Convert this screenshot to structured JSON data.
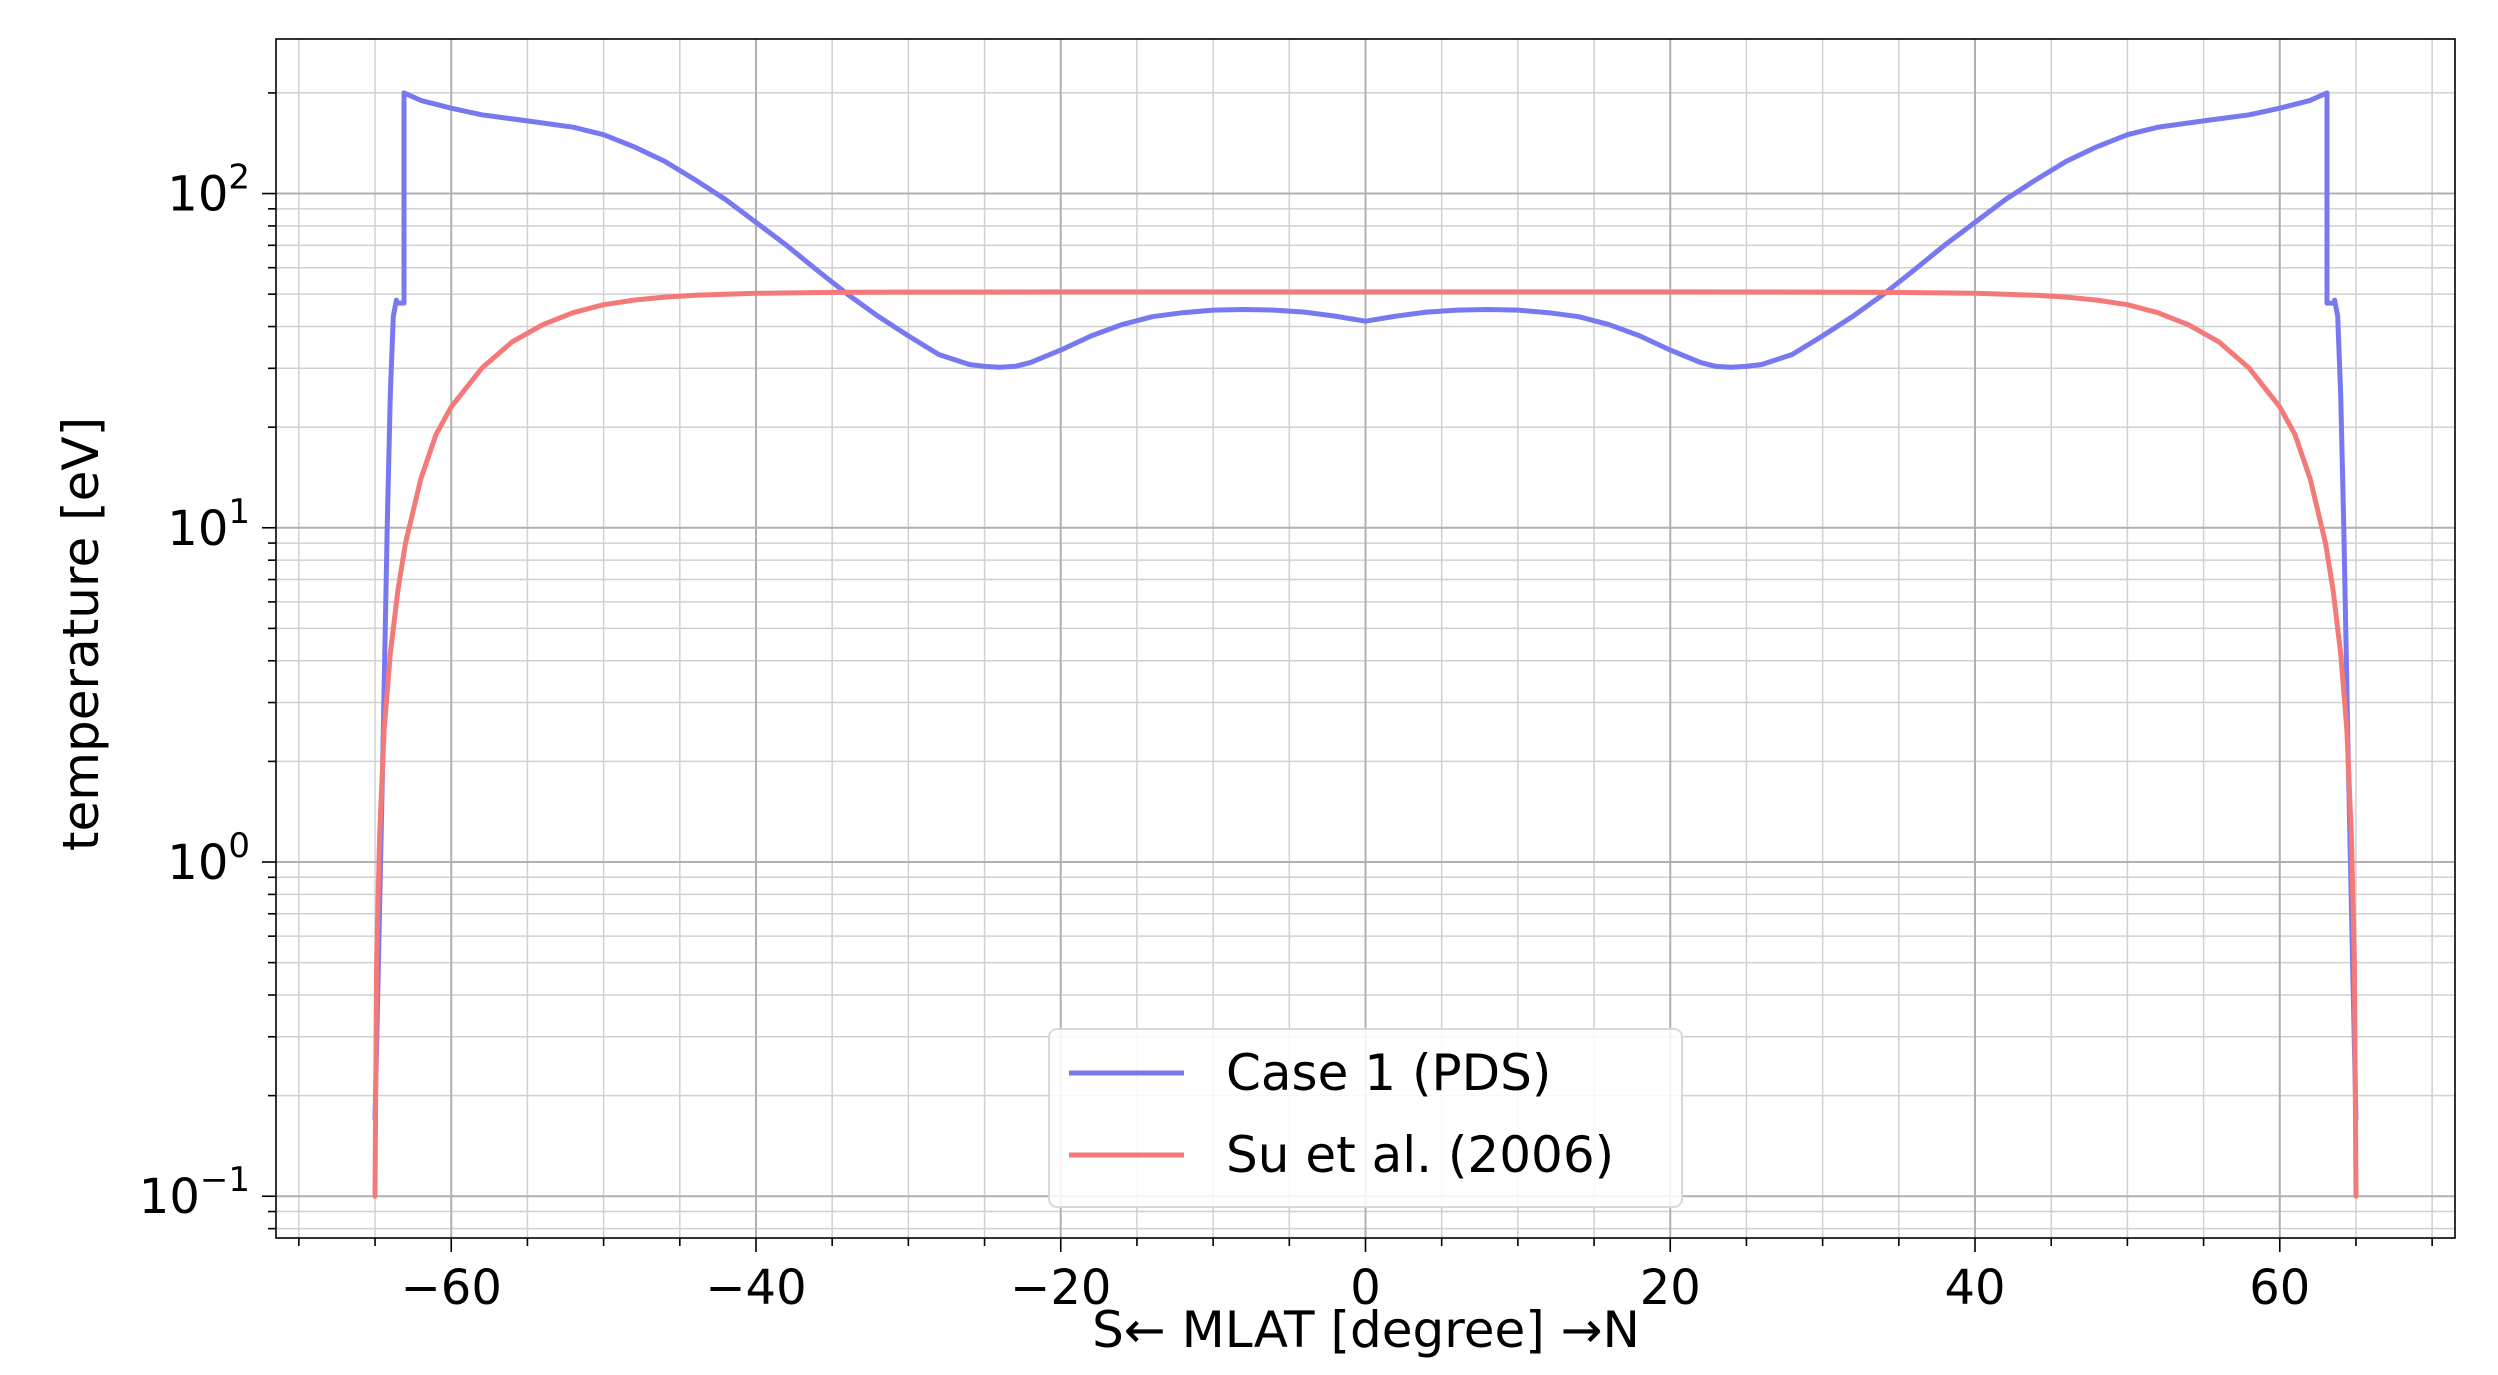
{
  "chart_data": {
    "type": "line",
    "xlabel": "S← MLAT [degree] →N",
    "ylabel": "temperature [eV]",
    "xlim": [
      -71.5,
      71.5
    ],
    "ylim": [
      0.075,
      290
    ],
    "yscale": "log",
    "grid": true,
    "legend_position": "lower-center",
    "x_ticks": [
      -60,
      -40,
      -20,
      0,
      20,
      40,
      60
    ],
    "x_tick_labels": [
      "−60",
      "−40",
      "−20",
      "0",
      "20",
      "40",
      "60"
    ],
    "y_ticks": [
      {
        "value": 100,
        "base": "10",
        "exp": "2"
      },
      {
        "value": 10,
        "base": "10",
        "exp": "1"
      },
      {
        "value": 1,
        "base": "10",
        "exp": "0"
      },
      {
        "value": 0.1,
        "base": "10",
        "exp": "−1"
      }
    ],
    "series": [
      {
        "name": "Case 1 (PDS)",
        "color": "#7878f0",
        "x": [
          -65,
          -64.8,
          -64.5,
          -64.2,
          -64,
          -63.8,
          -63.6,
          -63.6,
          -63.1,
          -63.1,
          -62,
          -60,
          -58,
          -55,
          -52,
          -50,
          -48,
          -46,
          -44,
          -42,
          -40,
          -38,
          -36,
          -34,
          -32,
          -30,
          -28,
          -26,
          -25,
          -24,
          -23,
          -22,
          -20,
          -18,
          -16,
          -14,
          -12,
          -10,
          -8,
          -6,
          -4,
          -2,
          0,
          2,
          4,
          6,
          8,
          10,
          12,
          14,
          16,
          18,
          20,
          22,
          23,
          24,
          25,
          26,
          28,
          30,
          32,
          34,
          36,
          38,
          40,
          42,
          44,
          46,
          48,
          50,
          52,
          55,
          58,
          60,
          62,
          63.1,
          63.1,
          63.6,
          63.6,
          63.8,
          64,
          64.2,
          64.5,
          64.8,
          65
        ],
        "y": [
          0.17,
          0.45,
          2.0,
          10,
          25,
          43,
          48,
          47,
          47,
          200,
          190,
          180,
          172,
          165,
          158,
          150,
          138,
          125,
          110,
          96,
          82,
          70,
          59,
          50,
          43,
          37.5,
          33,
          30.8,
          30.4,
          30.2,
          30.4,
          31.2,
          34,
          37.5,
          40.5,
          42.8,
          44,
          44.8,
          45,
          44.8,
          44.2,
          43,
          41.5,
          43,
          44.2,
          44.8,
          45,
          44.8,
          44,
          42.8,
          40.5,
          37.5,
          34,
          31.2,
          30.4,
          30.2,
          30.4,
          30.8,
          33,
          37.5,
          43,
          50,
          59,
          70,
          82,
          96,
          110,
          125,
          138,
          150,
          158,
          165,
          172,
          180,
          190,
          200,
          47,
          47,
          48,
          43,
          25,
          10,
          2.0,
          0.45,
          0.17
        ]
      },
      {
        "name": "Su et al. (2006)",
        "color": "#f47a7a",
        "x": [
          -65,
          -64.9,
          -64.7,
          -64.4,
          -64,
          -63.5,
          -63,
          -62,
          -61,
          -60,
          -58,
          -56,
          -54,
          -52,
          -50,
          -48,
          -46,
          -44,
          -42,
          -40,
          -35,
          -30,
          -20,
          -10,
          0,
          10,
          20,
          30,
          35,
          40,
          42,
          44,
          46,
          48,
          50,
          52,
          54,
          56,
          58,
          60,
          61,
          62,
          63,
          63.5,
          64,
          64.4,
          64.7,
          64.9,
          65
        ],
        "y": [
          0.1,
          0.5,
          1.2,
          2.5,
          4.2,
          6.5,
          9,
          14,
          19,
          23,
          30,
          36,
          40.5,
          44,
          46.5,
          48,
          49,
          49.6,
          50,
          50.3,
          50.6,
          50.7,
          50.8,
          50.8,
          50.8,
          50.8,
          50.8,
          50.7,
          50.6,
          50.3,
          50,
          49.6,
          49,
          48,
          46.5,
          44,
          40.5,
          36,
          30,
          23,
          19,
          14,
          9,
          6.5,
          4.2,
          2.5,
          1.2,
          0.5,
          0.1
        ]
      }
    ]
  }
}
